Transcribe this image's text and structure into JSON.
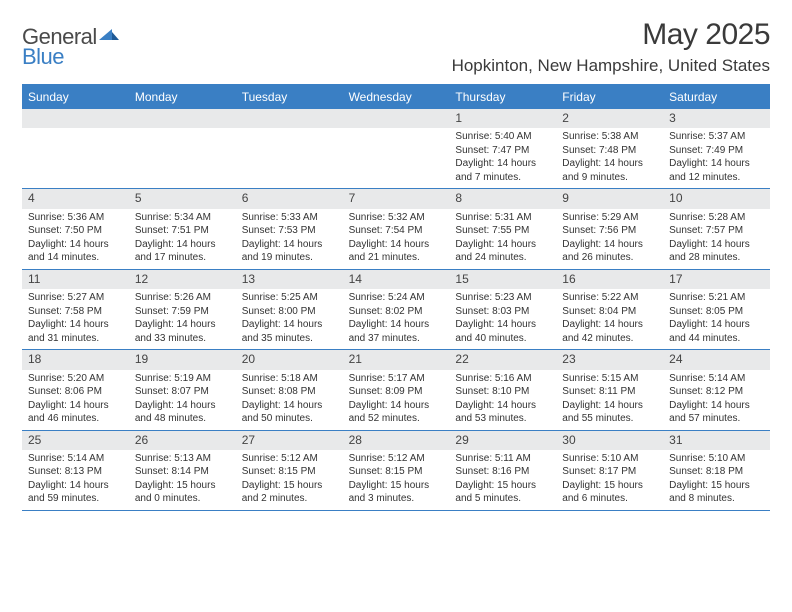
{
  "logo": {
    "general": "General",
    "blue": "Blue"
  },
  "title": "May 2025",
  "location": "Hopkinton, New Hampshire, United States",
  "colors": {
    "brand_blue": "#3a7fc4",
    "band_gray": "#e8e9ea",
    "text_dark": "#3a3a3a",
    "cell_text": "#333333"
  },
  "weekdays": [
    "Sunday",
    "Monday",
    "Tuesday",
    "Wednesday",
    "Thursday",
    "Friday",
    "Saturday"
  ],
  "weeks": [
    [
      null,
      null,
      null,
      null,
      {
        "n": "1",
        "sr": "Sunrise: 5:40 AM",
        "ss": "Sunset: 7:47 PM",
        "dl": "Daylight: 14 hours and 7 minutes."
      },
      {
        "n": "2",
        "sr": "Sunrise: 5:38 AM",
        "ss": "Sunset: 7:48 PM",
        "dl": "Daylight: 14 hours and 9 minutes."
      },
      {
        "n": "3",
        "sr": "Sunrise: 5:37 AM",
        "ss": "Sunset: 7:49 PM",
        "dl": "Daylight: 14 hours and 12 minutes."
      }
    ],
    [
      {
        "n": "4",
        "sr": "Sunrise: 5:36 AM",
        "ss": "Sunset: 7:50 PM",
        "dl": "Daylight: 14 hours and 14 minutes."
      },
      {
        "n": "5",
        "sr": "Sunrise: 5:34 AM",
        "ss": "Sunset: 7:51 PM",
        "dl": "Daylight: 14 hours and 17 minutes."
      },
      {
        "n": "6",
        "sr": "Sunrise: 5:33 AM",
        "ss": "Sunset: 7:53 PM",
        "dl": "Daylight: 14 hours and 19 minutes."
      },
      {
        "n": "7",
        "sr": "Sunrise: 5:32 AM",
        "ss": "Sunset: 7:54 PM",
        "dl": "Daylight: 14 hours and 21 minutes."
      },
      {
        "n": "8",
        "sr": "Sunrise: 5:31 AM",
        "ss": "Sunset: 7:55 PM",
        "dl": "Daylight: 14 hours and 24 minutes."
      },
      {
        "n": "9",
        "sr": "Sunrise: 5:29 AM",
        "ss": "Sunset: 7:56 PM",
        "dl": "Daylight: 14 hours and 26 minutes."
      },
      {
        "n": "10",
        "sr": "Sunrise: 5:28 AM",
        "ss": "Sunset: 7:57 PM",
        "dl": "Daylight: 14 hours and 28 minutes."
      }
    ],
    [
      {
        "n": "11",
        "sr": "Sunrise: 5:27 AM",
        "ss": "Sunset: 7:58 PM",
        "dl": "Daylight: 14 hours and 31 minutes."
      },
      {
        "n": "12",
        "sr": "Sunrise: 5:26 AM",
        "ss": "Sunset: 7:59 PM",
        "dl": "Daylight: 14 hours and 33 minutes."
      },
      {
        "n": "13",
        "sr": "Sunrise: 5:25 AM",
        "ss": "Sunset: 8:00 PM",
        "dl": "Daylight: 14 hours and 35 minutes."
      },
      {
        "n": "14",
        "sr": "Sunrise: 5:24 AM",
        "ss": "Sunset: 8:02 PM",
        "dl": "Daylight: 14 hours and 37 minutes."
      },
      {
        "n": "15",
        "sr": "Sunrise: 5:23 AM",
        "ss": "Sunset: 8:03 PM",
        "dl": "Daylight: 14 hours and 40 minutes."
      },
      {
        "n": "16",
        "sr": "Sunrise: 5:22 AM",
        "ss": "Sunset: 8:04 PM",
        "dl": "Daylight: 14 hours and 42 minutes."
      },
      {
        "n": "17",
        "sr": "Sunrise: 5:21 AM",
        "ss": "Sunset: 8:05 PM",
        "dl": "Daylight: 14 hours and 44 minutes."
      }
    ],
    [
      {
        "n": "18",
        "sr": "Sunrise: 5:20 AM",
        "ss": "Sunset: 8:06 PM",
        "dl": "Daylight: 14 hours and 46 minutes."
      },
      {
        "n": "19",
        "sr": "Sunrise: 5:19 AM",
        "ss": "Sunset: 8:07 PM",
        "dl": "Daylight: 14 hours and 48 minutes."
      },
      {
        "n": "20",
        "sr": "Sunrise: 5:18 AM",
        "ss": "Sunset: 8:08 PM",
        "dl": "Daylight: 14 hours and 50 minutes."
      },
      {
        "n": "21",
        "sr": "Sunrise: 5:17 AM",
        "ss": "Sunset: 8:09 PM",
        "dl": "Daylight: 14 hours and 52 minutes."
      },
      {
        "n": "22",
        "sr": "Sunrise: 5:16 AM",
        "ss": "Sunset: 8:10 PM",
        "dl": "Daylight: 14 hours and 53 minutes."
      },
      {
        "n": "23",
        "sr": "Sunrise: 5:15 AM",
        "ss": "Sunset: 8:11 PM",
        "dl": "Daylight: 14 hours and 55 minutes."
      },
      {
        "n": "24",
        "sr": "Sunrise: 5:14 AM",
        "ss": "Sunset: 8:12 PM",
        "dl": "Daylight: 14 hours and 57 minutes."
      }
    ],
    [
      {
        "n": "25",
        "sr": "Sunrise: 5:14 AM",
        "ss": "Sunset: 8:13 PM",
        "dl": "Daylight: 14 hours and 59 minutes."
      },
      {
        "n": "26",
        "sr": "Sunrise: 5:13 AM",
        "ss": "Sunset: 8:14 PM",
        "dl": "Daylight: 15 hours and 0 minutes."
      },
      {
        "n": "27",
        "sr": "Sunrise: 5:12 AM",
        "ss": "Sunset: 8:15 PM",
        "dl": "Daylight: 15 hours and 2 minutes."
      },
      {
        "n": "28",
        "sr": "Sunrise: 5:12 AM",
        "ss": "Sunset: 8:15 PM",
        "dl": "Daylight: 15 hours and 3 minutes."
      },
      {
        "n": "29",
        "sr": "Sunrise: 5:11 AM",
        "ss": "Sunset: 8:16 PM",
        "dl": "Daylight: 15 hours and 5 minutes."
      },
      {
        "n": "30",
        "sr": "Sunrise: 5:10 AM",
        "ss": "Sunset: 8:17 PM",
        "dl": "Daylight: 15 hours and 6 minutes."
      },
      {
        "n": "31",
        "sr": "Sunrise: 5:10 AM",
        "ss": "Sunset: 8:18 PM",
        "dl": "Daylight: 15 hours and 8 minutes."
      }
    ]
  ]
}
